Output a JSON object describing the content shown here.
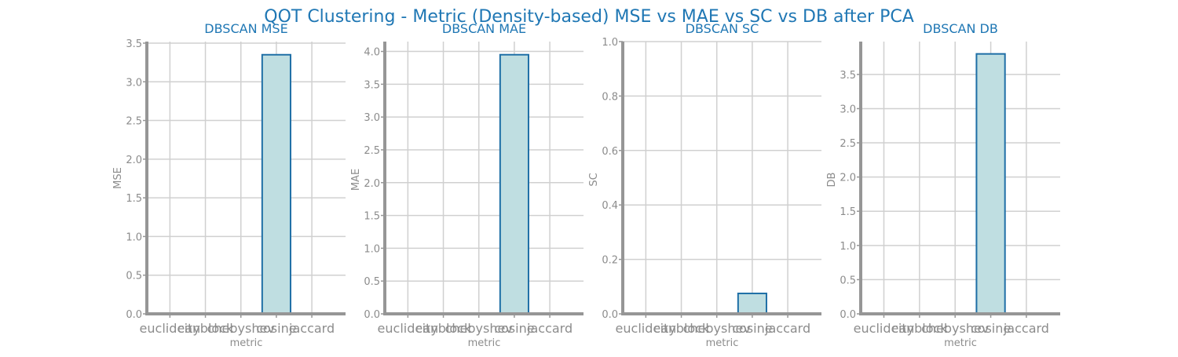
{
  "title": "QOT Clustering - Metric (Density-based) MSE vs MAE vs SC vs DB after PCA",
  "colors": {
    "bar_fill": "#bfdee1",
    "bar_edge": "#1f6fa6",
    "title": "#1f77b4",
    "text": "#8c8c8c",
    "grid": "#d0d0d0",
    "spine": "#969696"
  },
  "chart_data": [
    {
      "type": "bar",
      "title": "DBSCAN MSE",
      "xlabel": "metric",
      "ylabel": "MSE",
      "categories": [
        "euclidean",
        "cityblock",
        "chebyshev",
        "cosine",
        "jaccard"
      ],
      "values": [
        0,
        0,
        0,
        3.35,
        0
      ],
      "ylim": [
        0,
        3.52
      ],
      "yticks": [
        0.0,
        0.5,
        1.0,
        1.5,
        2.0,
        2.5,
        3.0,
        3.5
      ],
      "ytick_labels": [
        "0.0",
        "0.5",
        "1.0",
        "1.5",
        "2.0",
        "2.5",
        "3.0",
        "3.5"
      ],
      "grid": true
    },
    {
      "type": "bar",
      "title": "DBSCAN MAE",
      "xlabel": "metric",
      "ylabel": "MAE",
      "categories": [
        "euclidean",
        "cityblock",
        "chebyshev",
        "cosine",
        "jaccard"
      ],
      "values": [
        0,
        0,
        0,
        3.95,
        0
      ],
      "ylim": [
        0,
        4.15
      ],
      "yticks": [
        0.0,
        0.5,
        1.0,
        1.5,
        2.0,
        2.5,
        3.0,
        3.5,
        4.0
      ],
      "ytick_labels": [
        "0.0",
        "0.5",
        "1.0",
        "1.5",
        "2.0",
        "2.5",
        "3.0",
        "3.5",
        "4.0"
      ],
      "grid": true
    },
    {
      "type": "bar",
      "title": "DBSCAN SC",
      "xlabel": "metric",
      "ylabel": "SC",
      "categories": [
        "euclidean",
        "cityblock",
        "chebyshev",
        "cosine",
        "jaccard"
      ],
      "values": [
        0,
        0,
        0,
        0.075,
        0
      ],
      "ylim": [
        0,
        1.0
      ],
      "yticks": [
        0.0,
        0.2,
        0.4,
        0.6,
        0.8,
        1.0
      ],
      "ytick_labels": [
        "0.0",
        "0.2",
        "0.4",
        "0.6",
        "0.8",
        "1.0"
      ],
      "grid": true
    },
    {
      "type": "bar",
      "title": "DBSCAN DB",
      "xlabel": "metric",
      "ylabel": "DB",
      "categories": [
        "euclidean",
        "cityblock",
        "chebyshev",
        "cosine",
        "jaccard"
      ],
      "values": [
        0,
        0,
        0,
        3.8,
        0
      ],
      "ylim": [
        0,
        3.98
      ],
      "yticks": [
        0.0,
        0.5,
        1.0,
        1.5,
        2.0,
        2.5,
        3.0,
        3.5
      ],
      "ytick_labels": [
        "0.0",
        "0.5",
        "1.0",
        "1.5",
        "2.0",
        "2.5",
        "3.0",
        "3.5"
      ],
      "grid": true
    }
  ]
}
